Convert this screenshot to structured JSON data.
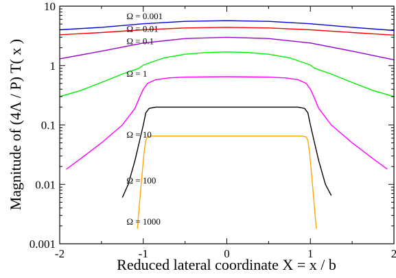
{
  "chart_data": {
    "type": "line",
    "title": "",
    "xlabel": "Reduced lateral coordinate  X = x / b",
    "ylabel": "Magnitude  of  (4Λ / P) T( x )",
    "xlim": [
      -2,
      2
    ],
    "ylim": [
      0.001,
      10
    ],
    "yscale": "log",
    "grid": false,
    "x_ticks": [
      -2,
      -1,
      0,
      1,
      2
    ],
    "y_ticks": [
      0.001,
      0.01,
      0.1,
      1,
      10
    ],
    "x_tick_labels": [
      "-2",
      "-1",
      "0",
      "1",
      "2"
    ],
    "y_tick_labels": [
      "0.001",
      "0.01",
      "0.1",
      "1",
      "10"
    ],
    "series": [
      {
        "name": "Ω = 0.001",
        "color": "#0000cc",
        "points": [
          [
            -2.0,
            4.0
          ],
          [
            -1.5,
            4.4
          ],
          [
            -1.0,
            5.05
          ],
          [
            -0.5,
            5.55
          ],
          [
            0.0,
            5.7
          ],
          [
            0.5,
            5.55
          ],
          [
            1.0,
            5.05
          ],
          [
            1.5,
            4.4
          ],
          [
            2.0,
            3.9
          ]
        ]
      },
      {
        "name": "Ω = 0.01",
        "color": "#ff0000",
        "points": [
          [
            -2.0,
            3.3
          ],
          [
            -1.5,
            3.6
          ],
          [
            -1.0,
            4.0
          ],
          [
            -0.5,
            4.3
          ],
          [
            0.0,
            4.4
          ],
          [
            0.5,
            4.3
          ],
          [
            1.0,
            4.0
          ],
          [
            1.5,
            3.6
          ],
          [
            2.0,
            3.25
          ]
        ]
      },
      {
        "name": "Ω = 0.1",
        "color": "#9900cc",
        "points": [
          [
            -2.0,
            1.3
          ],
          [
            -1.5,
            1.75
          ],
          [
            -1.0,
            2.4
          ],
          [
            -0.5,
            2.85
          ],
          [
            0.0,
            3.0
          ],
          [
            0.5,
            2.85
          ],
          [
            1.0,
            2.4
          ],
          [
            1.5,
            1.75
          ],
          [
            2.0,
            1.25
          ]
        ]
      },
      {
        "name": "Ω = 1",
        "color": "#00ee00",
        "points": [
          [
            -2.0,
            0.3
          ],
          [
            -1.75,
            0.38
          ],
          [
            -1.5,
            0.52
          ],
          [
            -1.25,
            0.72
          ],
          [
            -1.05,
            0.9
          ],
          [
            -1.0,
            1.02
          ],
          [
            -0.75,
            1.35
          ],
          [
            -0.5,
            1.55
          ],
          [
            -0.25,
            1.66
          ],
          [
            0.0,
            1.7
          ],
          [
            0.25,
            1.66
          ],
          [
            0.5,
            1.55
          ],
          [
            0.75,
            1.35
          ],
          [
            1.0,
            1.02
          ],
          [
            1.05,
            0.9
          ],
          [
            1.25,
            0.72
          ],
          [
            1.5,
            0.52
          ],
          [
            1.75,
            0.38
          ],
          [
            2.0,
            0.3
          ]
        ]
      },
      {
        "name": "Ω = 10",
        "color": "#ff00ff",
        "points": [
          [
            -1.92,
            0.018
          ],
          [
            -1.75,
            0.027
          ],
          [
            -1.5,
            0.05
          ],
          [
            -1.25,
            0.1
          ],
          [
            -1.1,
            0.19
          ],
          [
            -1.05,
            0.28
          ],
          [
            -1.0,
            0.4
          ],
          [
            -0.95,
            0.5
          ],
          [
            -0.85,
            0.58
          ],
          [
            -0.7,
            0.62
          ],
          [
            -0.5,
            0.64
          ],
          [
            0.0,
            0.65
          ],
          [
            0.5,
            0.64
          ],
          [
            0.7,
            0.62
          ],
          [
            0.85,
            0.58
          ],
          [
            0.95,
            0.5
          ],
          [
            1.0,
            0.4
          ],
          [
            1.05,
            0.28
          ],
          [
            1.1,
            0.19
          ],
          [
            1.25,
            0.1
          ],
          [
            1.5,
            0.05
          ],
          [
            1.75,
            0.027
          ],
          [
            1.92,
            0.018
          ]
        ]
      },
      {
        "name": "Ω = 100",
        "color": "#000000",
        "points": [
          [
            -1.25,
            0.006
          ],
          [
            -1.18,
            0.01
          ],
          [
            -1.1,
            0.025
          ],
          [
            -1.05,
            0.05
          ],
          [
            -1.0,
            0.1
          ],
          [
            -0.97,
            0.16
          ],
          [
            -0.93,
            0.19
          ],
          [
            -0.85,
            0.2
          ],
          [
            -0.5,
            0.2
          ],
          [
            0.0,
            0.2
          ],
          [
            0.5,
            0.2
          ],
          [
            0.85,
            0.2
          ],
          [
            0.93,
            0.19
          ],
          [
            0.97,
            0.16
          ],
          [
            1.0,
            0.1
          ],
          [
            1.05,
            0.05
          ],
          [
            1.1,
            0.025
          ],
          [
            1.18,
            0.01
          ],
          [
            1.25,
            0.0065
          ]
        ]
      },
      {
        "name": "Ω = 1000",
        "color": "#ffa500",
        "points": [
          [
            -1.07,
            0.0018
          ],
          [
            -1.05,
            0.004
          ],
          [
            -1.02,
            0.012
          ],
          [
            -0.99,
            0.035
          ],
          [
            -0.97,
            0.055
          ],
          [
            -0.95,
            0.063
          ],
          [
            -0.9,
            0.065
          ],
          [
            0.0,
            0.065
          ],
          [
            0.9,
            0.065
          ],
          [
            0.95,
            0.063
          ],
          [
            0.97,
            0.055
          ],
          [
            0.99,
            0.035
          ],
          [
            1.02,
            0.012
          ],
          [
            1.05,
            0.004
          ],
          [
            1.07,
            0.0018
          ]
        ]
      }
    ],
    "annotations": [
      {
        "text": "Ω = 0.001",
        "x": -1.2,
        "y": 6.0,
        "series": "Ω = 0.001"
      },
      {
        "text": "Ω = 0.01",
        "x": -1.2,
        "y": 3.7,
        "series": "Ω = 0.01"
      },
      {
        "text": "Ω = 0.1",
        "x": -1.2,
        "y": 2.3,
        "series": "Ω = 0.1"
      },
      {
        "text": "Ω = 1",
        "x": -1.2,
        "y": 0.65,
        "series": "Ω = 1"
      },
      {
        "text": "Ω = 10",
        "x": -1.2,
        "y": 0.061,
        "series": "Ω = 10"
      },
      {
        "text": "Ω = 100",
        "x": -1.2,
        "y": 0.0103,
        "series": "Ω = 100"
      },
      {
        "text": "Ω = 1000",
        "x": -1.2,
        "y": 0.0021,
        "series": "Ω = 1000"
      }
    ]
  }
}
